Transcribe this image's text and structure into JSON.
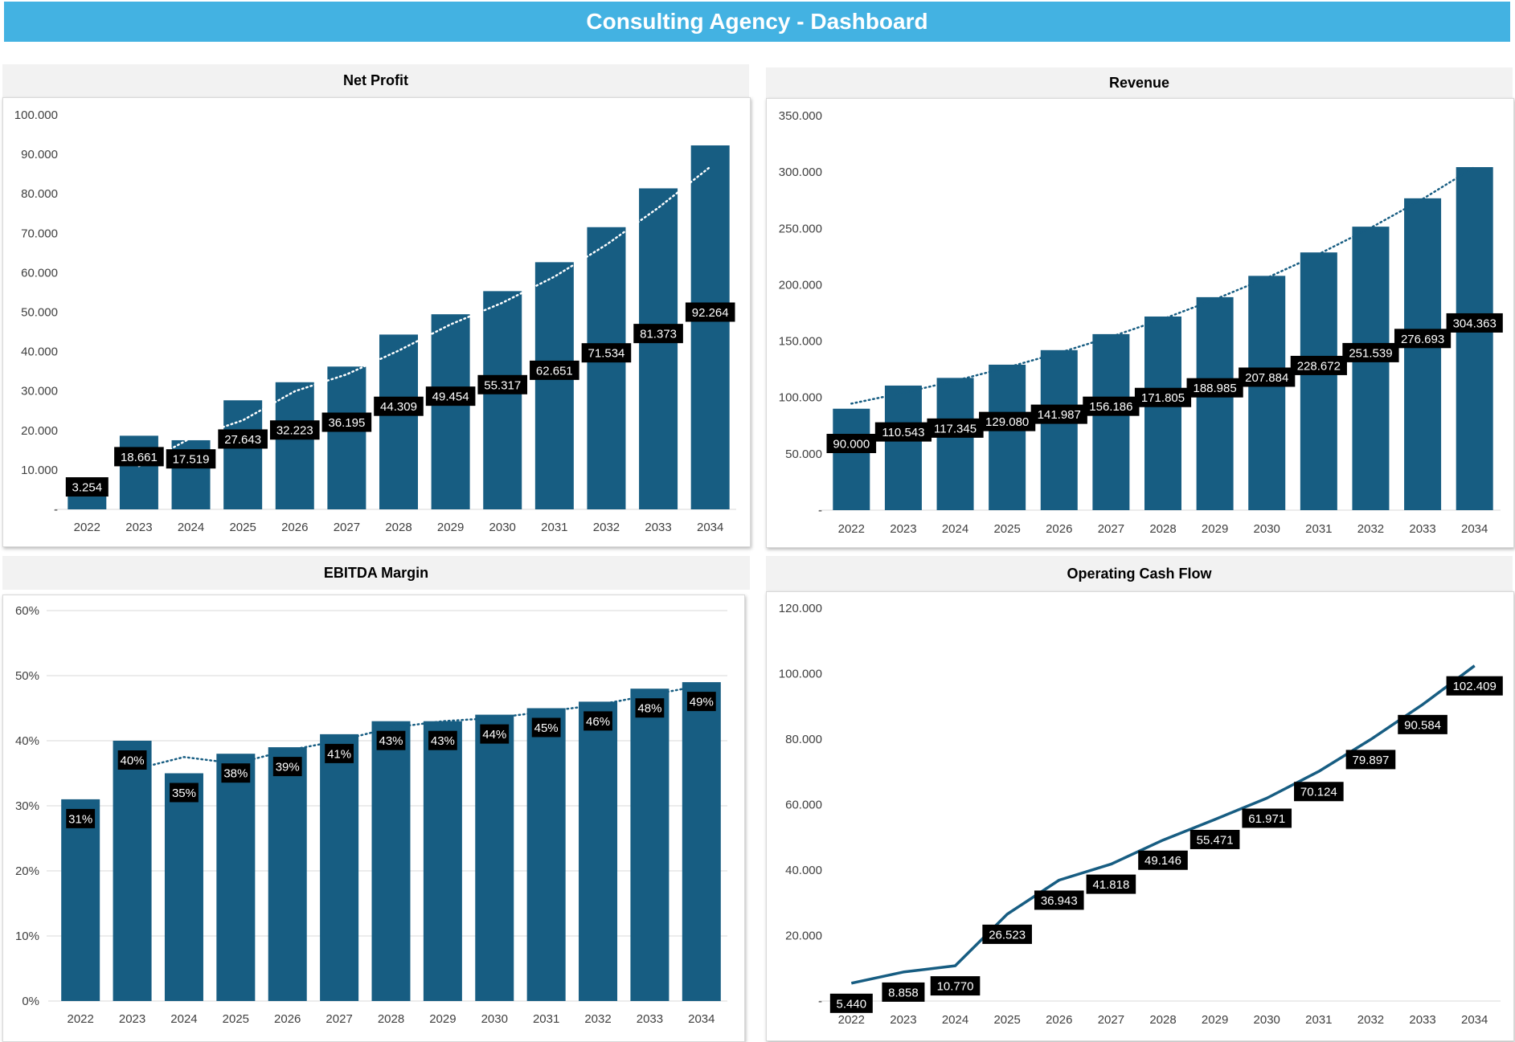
{
  "dashboard": {
    "title": "Consulting Agency - Dashboard"
  },
  "colors": {
    "banner": "#43b2e2",
    "bar": "#175d82",
    "label_bg": "#000000",
    "label_text": "#ffffff",
    "title_bg": "#f2f2f2"
  },
  "chart_data": [
    {
      "type": "bar",
      "title": "Net Profit",
      "categories": [
        "2022",
        "2023",
        "2024",
        "2025",
        "2026",
        "2027",
        "2028",
        "2029",
        "2030",
        "2031",
        "2032",
        "2033",
        "2034"
      ],
      "values": [
        3254,
        18661,
        17519,
        27643,
        32223,
        36195,
        44309,
        49454,
        55317,
        62651,
        71534,
        81373,
        92264
      ],
      "data_labels": [
        "3.254",
        "18.661",
        "17.519",
        "27.643",
        "32.223",
        "36.195",
        "44.309",
        "49.454",
        "55.317",
        "62.651",
        "71.534",
        "81.373",
        "92.264"
      ],
      "ylim": [
        0,
        100000
      ],
      "yticks": [
        0,
        10000,
        20000,
        30000,
        40000,
        50000,
        60000,
        70000,
        80000,
        90000,
        100000
      ],
      "ytick_labels": [
        "-",
        "10.000",
        "20.000",
        "30.000",
        "40.000",
        "50.000",
        "60.000",
        "70.000",
        "80.000",
        "90.000",
        "100.000"
      ],
      "trendline": "dotted moving average",
      "trend_color": "#ffffff",
      "grid": false
    },
    {
      "type": "bar",
      "title": "Revenue",
      "categories": [
        "2022",
        "2023",
        "2024",
        "2025",
        "2026",
        "2027",
        "2028",
        "2029",
        "2030",
        "2031",
        "2032",
        "2033",
        "2034"
      ],
      "values": [
        90000,
        110543,
        117345,
        129080,
        141987,
        156186,
        171805,
        188985,
        207884,
        228672,
        251539,
        276693,
        304363
      ],
      "data_labels": [
        "90.000",
        "110.543",
        "117.345",
        "129.080",
        "141.987",
        "156.186",
        "171.805",
        "188.985",
        "207.884",
        "228.672",
        "251.539",
        "276.693",
        "304.363"
      ],
      "ylim": [
        0,
        350000
      ],
      "yticks": [
        0,
        50000,
        100000,
        150000,
        200000,
        250000,
        300000,
        350000
      ],
      "ytick_labels": [
        "-",
        "50.000",
        "100.000",
        "150.000",
        "200.000",
        "250.000",
        "300.000",
        "350.000"
      ],
      "trendline": "dotted exponential",
      "trend_color": "#175d82",
      "grid": false
    },
    {
      "type": "bar",
      "title": "EBITDA Margin",
      "categories": [
        "2022",
        "2023",
        "2024",
        "2025",
        "2026",
        "2027",
        "2028",
        "2029",
        "2030",
        "2031",
        "2032",
        "2033",
        "2034"
      ],
      "values": [
        31,
        40,
        35,
        38,
        39,
        41,
        43,
        43,
        44,
        45,
        46,
        48,
        49
      ],
      "data_labels": [
        "31%",
        "40%",
        "35%",
        "38%",
        "39%",
        "41%",
        "43%",
        "43%",
        "44%",
        "45%",
        "46%",
        "48%",
        "49%"
      ],
      "ylim": [
        0,
        60
      ],
      "yticks": [
        0,
        10,
        20,
        30,
        40,
        50,
        60
      ],
      "ytick_labels": [
        "0%",
        "10%",
        "20%",
        "30%",
        "40%",
        "50%",
        "60%"
      ],
      "trendline": "dotted moving average",
      "trend_color": "#175d82",
      "grid": true
    },
    {
      "type": "line",
      "title": "Operating Cash Flow",
      "categories": [
        "2022",
        "2023",
        "2024",
        "2025",
        "2026",
        "2027",
        "2028",
        "2029",
        "2030",
        "2031",
        "2032",
        "2033",
        "2034"
      ],
      "values": [
        5440,
        8858,
        10770,
        26523,
        36943,
        41818,
        49146,
        55471,
        61971,
        70124,
        79897,
        90584,
        102409
      ],
      "data_labels": [
        "5.440",
        "8.858",
        "10.770",
        "26.523",
        "36.943",
        "41.818",
        "49.146",
        "55.471",
        "61.971",
        "70.124",
        "79.897",
        "90.584",
        "102.409"
      ],
      "ylim": [
        0,
        120000
      ],
      "yticks": [
        0,
        20000,
        40000,
        60000,
        80000,
        100000,
        120000
      ],
      "ytick_labels": [
        "-",
        "20.000",
        "40.000",
        "60.000",
        "80.000",
        "100.000",
        "120.000"
      ],
      "line_color": "#175d82",
      "grid": false
    }
  ]
}
